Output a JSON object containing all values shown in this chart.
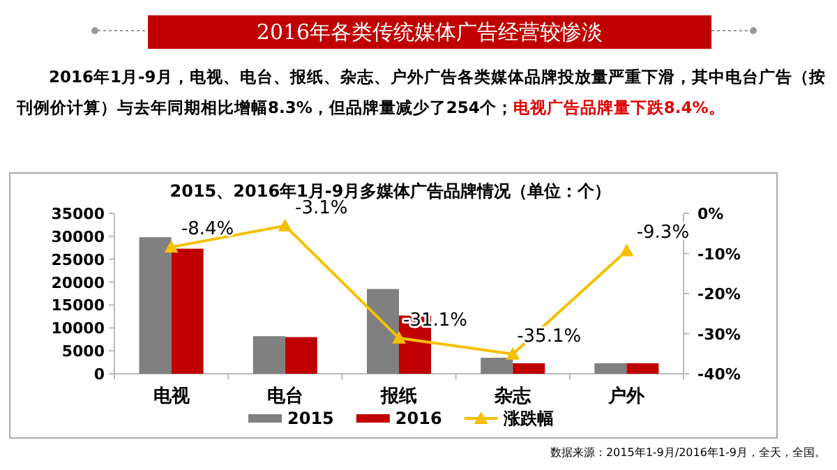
{
  "chart_data": {
    "type": "bar",
    "title": "2016年各类传统媒体广告经营较惨淡",
    "subtitle": "2016年1月-9月，电视、电台、报纸、杂志、户外广告各类媒体品牌投放量严重下滑，其中电台广告（按刊例价计算）与去年同期相比增幅8.3%，但品牌量减少了254个；",
    "annotations": [
      "电视广告品牌量下跌8.4%。",
      "2015、2016年1月-9月多媒体广告品牌情况（单位：个）",
      "数据来源：2015年1-9月/2016年1-9月，全天，全国。"
    ],
    "categories": [
      "电视",
      "电台",
      "报纸",
      "杂志",
      "户外"
    ],
    "series": [
      {
        "name": "2015",
        "color": "#808080",
        "values": [
          29800,
          8200,
          18500,
          3500,
          2300
        ]
      },
      {
        "name": "2016",
        "color": "#c00000",
        "values": [
          27300,
          8000,
          12700,
          2300,
          2300
        ]
      },
      {
        "name": "涨跌幅",
        "type": "line",
        "axis": "y2",
        "color": "#f5c000",
        "marker": "triangle",
        "values": [
          -8.4,
          -3.1,
          -31.1,
          -35.1,
          -9.3
        ],
        "value_labels": [
          "-8.4%",
          "-3.1%",
          "-31.1%",
          "-35.1%",
          "-9.3%"
        ]
      }
    ],
    "ylim": [
      0,
      35000
    ],
    "yticks": [
      0,
      5000,
      10000,
      15000,
      20000,
      25000,
      30000,
      35000
    ],
    "y2lim": [
      -40,
      0
    ],
    "y2ticks": [
      {
        "value": 0,
        "label": "0%"
      },
      {
        "value": -10,
        "label": "-10%"
      },
      {
        "value": -20,
        "label": "-20%"
      },
      {
        "value": -30,
        "label": "-30%"
      },
      {
        "value": -40,
        "label": "-40%"
      }
    ],
    "grid": false,
    "legend": "bottom"
  }
}
